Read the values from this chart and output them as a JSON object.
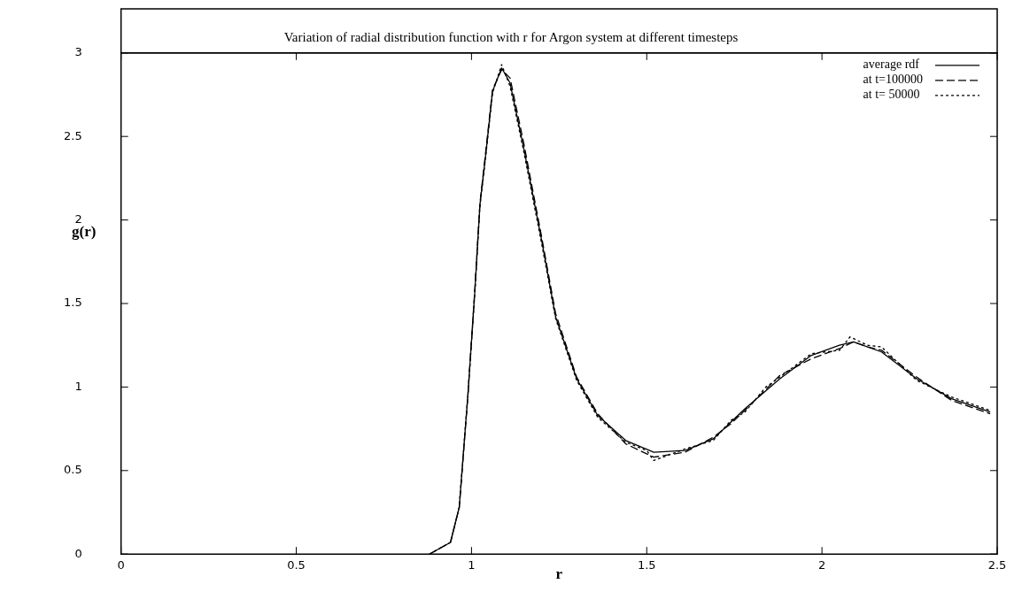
{
  "chart_data": {
    "type": "line",
    "title": "Variation of radial distribution function with r for Argon system at different timesteps",
    "xlabel": "r",
    "ylabel": "g(r)",
    "xlim": [
      0,
      2.5
    ],
    "ylim": [
      0,
      3
    ],
    "xticks": [
      0,
      0.5,
      1,
      1.5,
      2,
      2.5
    ],
    "yticks": [
      0,
      0.5,
      1,
      1.5,
      2,
      2.5,
      3
    ],
    "legend": "top right",
    "grid": false,
    "marker": "none",
    "series": [
      {
        "name": "average rdf",
        "color": "#000000",
        "line_style": "solid",
        "x": [
          0.88,
          0.94,
          0.965,
          0.99,
          1.01,
          1.024,
          1.04,
          1.06,
          1.086,
          1.11,
          1.15,
          1.2,
          1.24,
          1.3,
          1.36,
          1.44,
          1.52,
          1.61,
          1.69,
          1.78,
          1.88,
          1.97,
          2.05,
          2.09,
          2.17,
          2.27,
          2.37,
          2.48
        ],
        "values": [
          0,
          0.07,
          0.28,
          0.96,
          1.59,
          2.09,
          2.38,
          2.77,
          2.91,
          2.82,
          2.42,
          1.88,
          1.42,
          1.05,
          0.83,
          0.68,
          0.61,
          0.62,
          0.69,
          0.87,
          1.05,
          1.19,
          1.25,
          1.27,
          1.21,
          1.05,
          0.93,
          0.85
        ]
      },
      {
        "name": "at t=100000",
        "color": "#000000",
        "line_style": "dashed",
        "x": [
          0.88,
          0.94,
          0.965,
          0.99,
          1.01,
          1.024,
          1.04,
          1.06,
          1.086,
          1.11,
          1.15,
          1.2,
          1.24,
          1.3,
          1.36,
          1.44,
          1.5,
          1.52,
          1.61,
          1.69,
          1.74,
          1.78,
          1.88,
          1.97,
          2.05,
          2.09,
          2.13,
          2.17,
          2.27,
          2.37,
          2.48
        ],
        "values": [
          0,
          0.07,
          0.28,
          0.96,
          1.6,
          2.1,
          2.4,
          2.78,
          2.9,
          2.85,
          2.45,
          1.9,
          1.44,
          1.06,
          0.84,
          0.66,
          0.6,
          0.58,
          0.61,
          0.7,
          0.78,
          0.86,
          1.07,
          1.17,
          1.23,
          1.27,
          1.24,
          1.22,
          1.06,
          0.92,
          0.84
        ]
      },
      {
        "name": "at t= 50000",
        "color": "#000000",
        "line_style": "dotted",
        "x": [
          0.88,
          0.94,
          0.965,
          0.99,
          1.01,
          1.024,
          1.04,
          1.06,
          1.086,
          1.11,
          1.15,
          1.2,
          1.24,
          1.3,
          1.36,
          1.44,
          1.5,
          1.52,
          1.61,
          1.69,
          1.74,
          1.78,
          1.84,
          1.88,
          1.97,
          2.05,
          2.08,
          2.13,
          2.17,
          2.27,
          2.37,
          2.48
        ],
        "values": [
          0,
          0.07,
          0.28,
          0.96,
          1.58,
          2.08,
          2.37,
          2.76,
          2.93,
          2.8,
          2.4,
          1.86,
          1.41,
          1.04,
          0.82,
          0.67,
          0.62,
          0.56,
          0.63,
          0.68,
          0.8,
          0.85,
          1.0,
          1.06,
          1.2,
          1.22,
          1.3,
          1.25,
          1.24,
          1.04,
          0.94,
          0.86
        ]
      }
    ]
  }
}
